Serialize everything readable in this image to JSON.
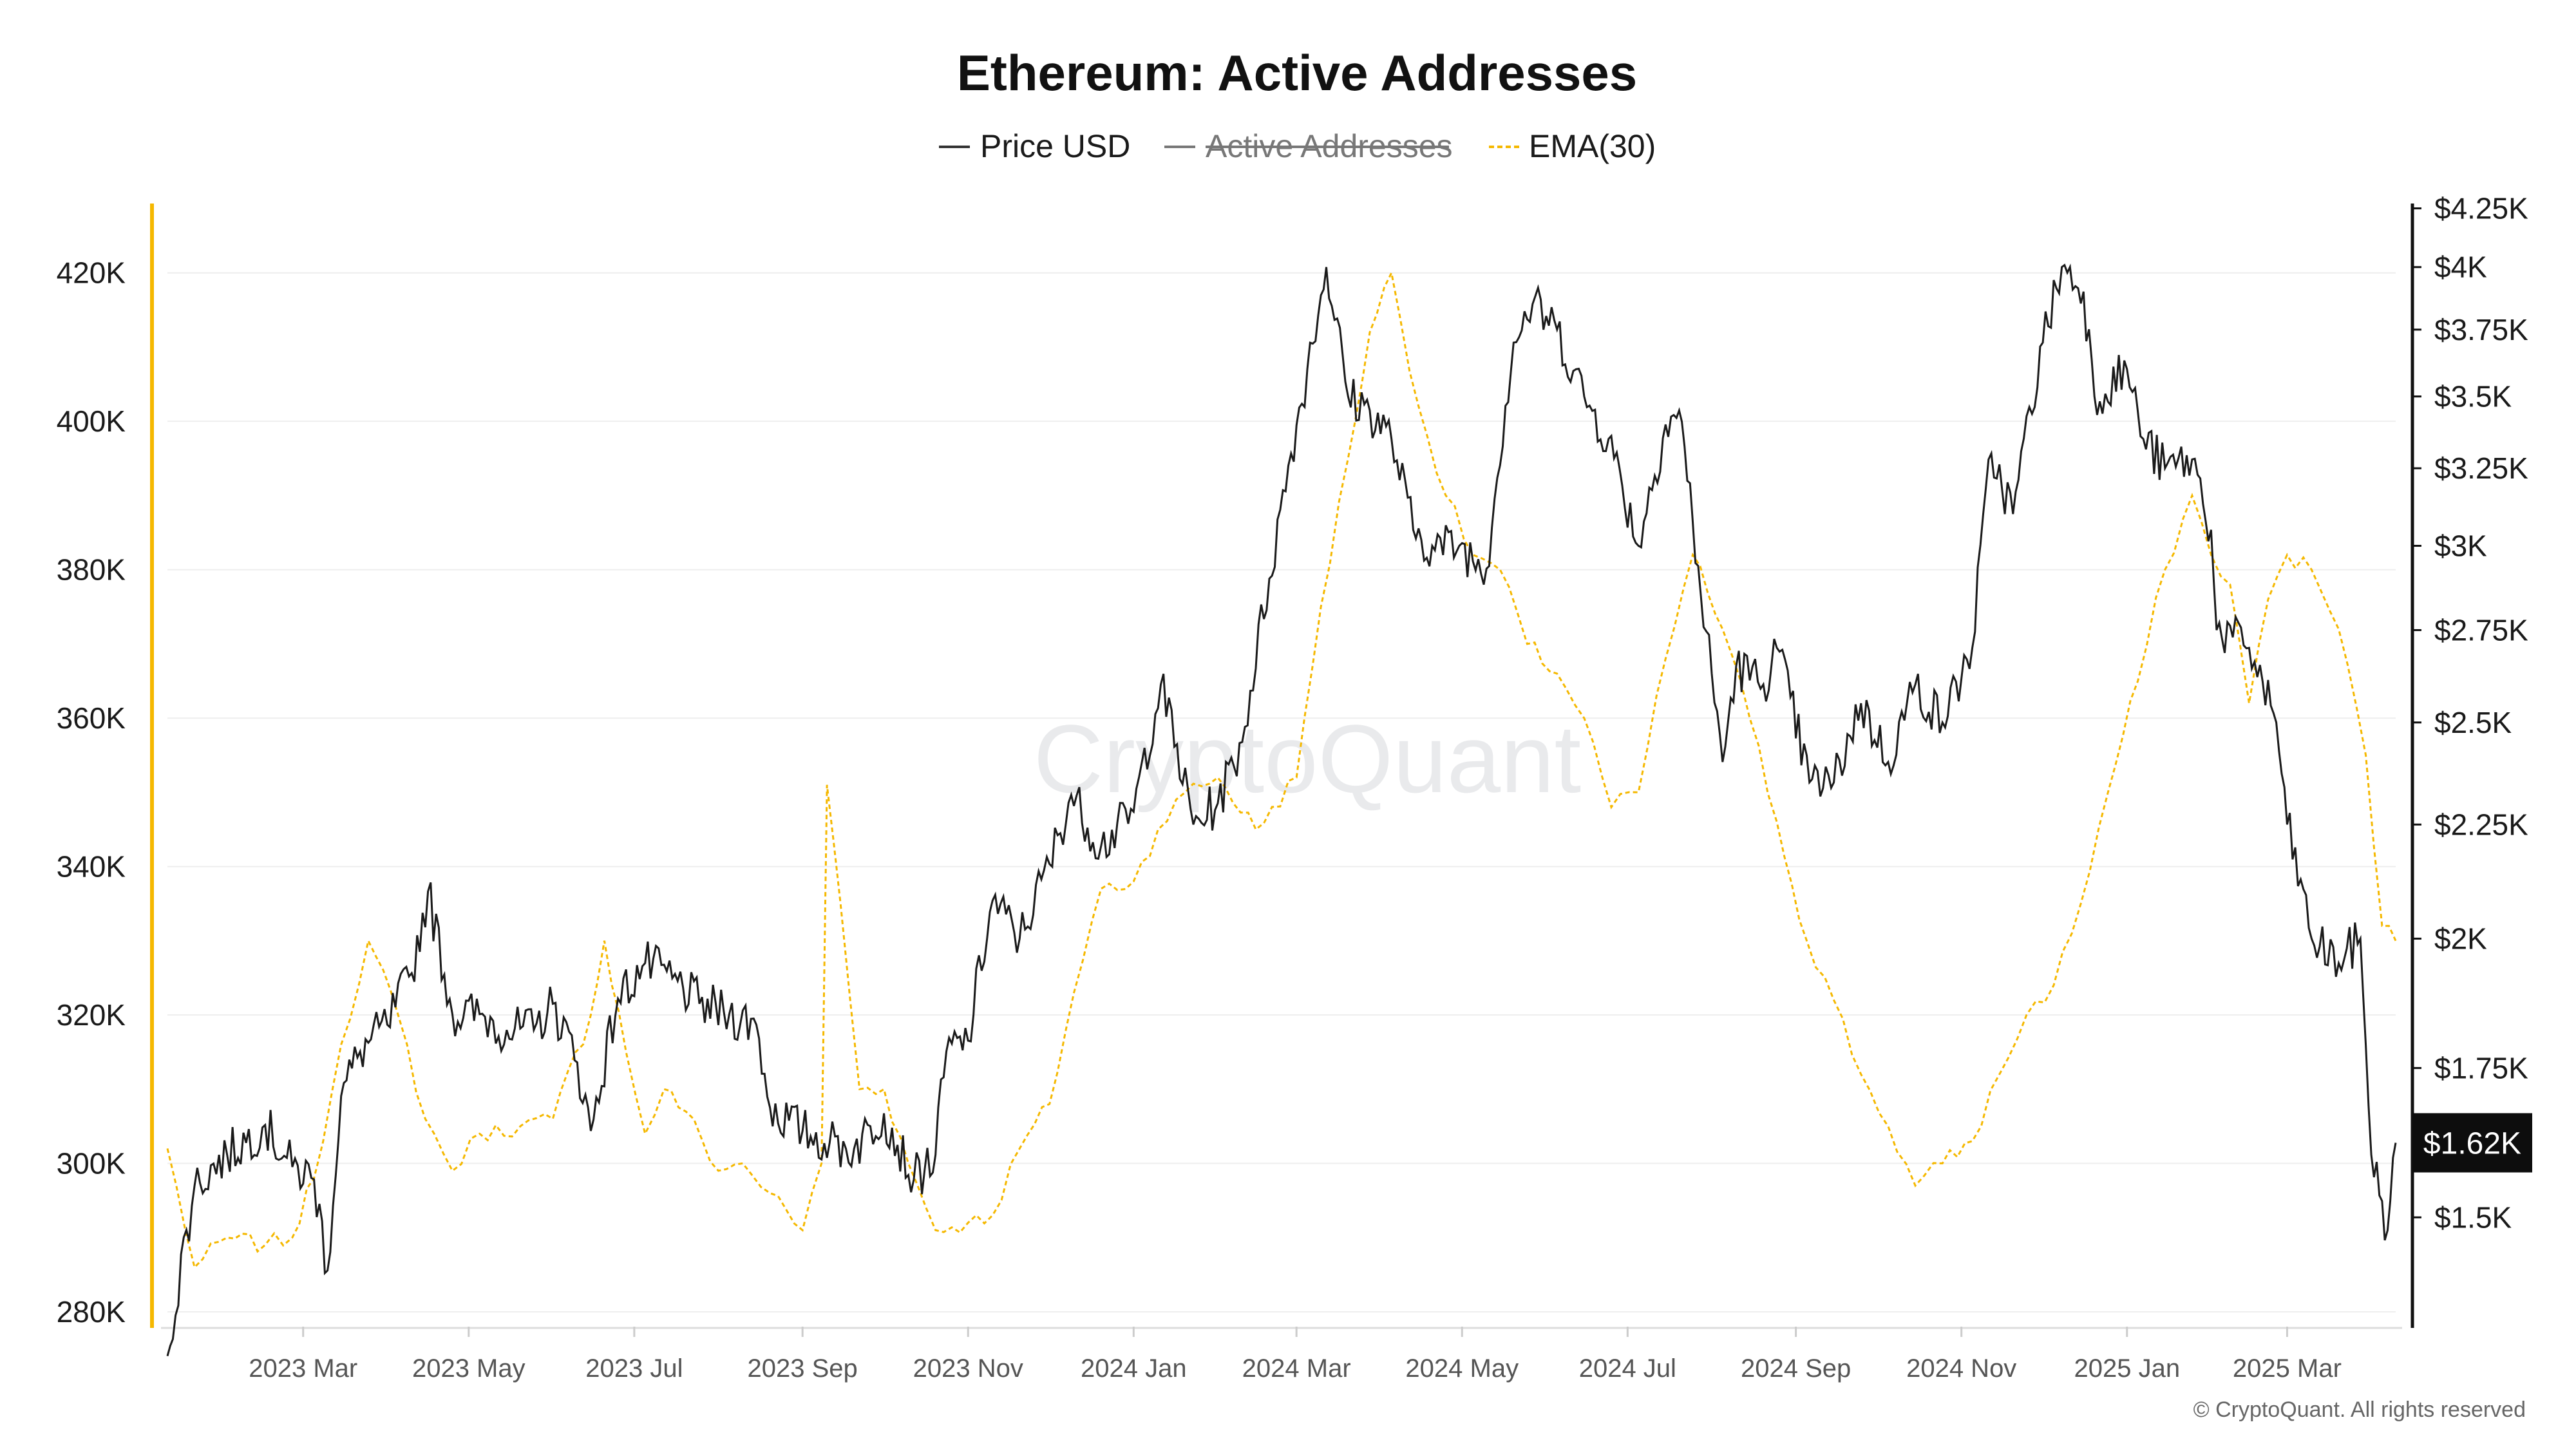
{
  "chart_data": {
    "type": "line",
    "title": "Ethereum: Active Addresses",
    "legend": [
      {
        "label": "Price USD",
        "style": "solid",
        "color": "#333333",
        "enabled": true
      },
      {
        "label": "Active Addresses",
        "style": "solid",
        "color": "#777777",
        "enabled": false
      },
      {
        "label": "EMA(30)",
        "style": "dashed",
        "color": "#f5b800",
        "enabled": true
      }
    ],
    "legend_position": "top-center",
    "grid": true,
    "colors": {
      "price": "#1a1a1a",
      "ema": "#f5b800",
      "left_axis": "#f5b800",
      "right_axis": "#111111"
    },
    "x_ticks": [
      "2023 Mar",
      "2023 May",
      "2023 Jul",
      "2023 Sep",
      "2023 Nov",
      "2024 Jan",
      "2024 Mar",
      "2024 May",
      "2024 Jul",
      "2024 Sep",
      "2024 Nov",
      "2025 Jan",
      "2025 Mar"
    ],
    "x_range": [
      "2023-01-10",
      "2025-04-10"
    ],
    "left_axis": {
      "ticks": [
        "280K",
        "300K",
        "320K",
        "340K",
        "360K",
        "380K",
        "400K",
        "420K"
      ],
      "tick_values": [
        280000,
        300000,
        320000,
        340000,
        360000,
        380000,
        400000,
        420000
      ],
      "range": [
        278000,
        429000
      ]
    },
    "right_axis": {
      "scale": "log",
      "ticks": [
        "$1.5K",
        "$1.75K",
        "$2K",
        "$2.25K",
        "$2.5K",
        "$2.75K",
        "$3K",
        "$3.25K",
        "$3.5K",
        "$3.75K",
        "$4K",
        "$4.25K"
      ],
      "tick_values": [
        1500,
        1750,
        2000,
        2250,
        2500,
        2750,
        3000,
        3250,
        3500,
        3750,
        4000,
        4250
      ],
      "range": [
        1340,
        4260
      ]
    },
    "last_price_label": "$1.62K",
    "last_price": 1620,
    "series": [
      {
        "name": "Price USD",
        "axis": "right",
        "x": [
          "2023-01-10",
          "2023-01-20",
          "2023-02-01",
          "2023-02-15",
          "2023-02-25",
          "2023-03-05",
          "2023-03-10",
          "2023-03-15",
          "2023-03-22",
          "2023-04-01",
          "2023-04-10",
          "2023-04-16",
          "2023-04-25",
          "2023-05-05",
          "2023-05-15",
          "2023-05-25",
          "2023-06-01",
          "2023-06-10",
          "2023-06-15",
          "2023-06-25",
          "2023-07-05",
          "2023-07-15",
          "2023-07-25",
          "2023-08-05",
          "2023-08-15",
          "2023-08-20",
          "2023-09-01",
          "2023-09-11",
          "2023-09-20",
          "2023-10-01",
          "2023-10-12",
          "2023-10-20",
          "2023-10-24",
          "2023-11-01",
          "2023-11-10",
          "2023-11-20",
          "2023-12-01",
          "2023-12-09",
          "2023-12-20",
          "2024-01-01",
          "2024-01-11",
          "2024-01-23",
          "2024-02-01",
          "2024-02-10",
          "2024-02-20",
          "2024-02-28",
          "2024-03-05",
          "2024-03-12",
          "2024-03-20",
          "2024-03-28",
          "2024-04-05",
          "2024-04-13",
          "2024-04-20",
          "2024-04-30",
          "2024-05-10",
          "2024-05-20",
          "2024-05-27",
          "2024-06-05",
          "2024-06-15",
          "2024-06-24",
          "2024-07-05",
          "2024-07-15",
          "2024-07-20",
          "2024-07-28",
          "2024-08-05",
          "2024-08-10",
          "2024-08-20",
          "2024-08-25",
          "2024-09-06",
          "2024-09-15",
          "2024-09-25",
          "2024-10-05",
          "2024-10-15",
          "2024-10-25",
          "2024-11-05",
          "2024-11-12",
          "2024-11-20",
          "2024-12-01",
          "2024-12-08",
          "2024-12-16",
          "2024-12-20",
          "2025-01-01",
          "2025-01-07",
          "2025-01-15",
          "2025-01-25",
          "2025-02-01",
          "2025-02-03",
          "2025-02-15",
          "2025-02-25",
          "2025-03-01",
          "2025-03-10",
          "2025-03-20",
          "2025-03-28",
          "2025-04-01",
          "2025-04-07",
          "2025-04-10"
        ],
        "y": [
          1300,
          1550,
          1600,
          1650,
          1580,
          1560,
          1420,
          1700,
          1780,
          1830,
          1930,
          2100,
          1850,
          1850,
          1820,
          1820,
          1870,
          1760,
          1640,
          1880,
          1950,
          1920,
          1870,
          1850,
          1830,
          1680,
          1640,
          1620,
          1610,
          1670,
          1560,
          1600,
          1780,
          1800,
          2080,
          2000,
          2160,
          2320,
          2200,
          2280,
          2600,
          2250,
          2300,
          2450,
          2900,
          3300,
          3600,
          4000,
          3500,
          3450,
          3350,
          3050,
          3000,
          3000,
          2930,
          3700,
          3850,
          3750,
          3500,
          3350,
          3000,
          3400,
          3450,
          2850,
          2400,
          2650,
          2600,
          2700,
          2350,
          2350,
          2550,
          2400,
          2600,
          2500,
          2700,
          3300,
          3100,
          3700,
          4000,
          3900,
          3500,
          3600,
          3350,
          3250,
          3280,
          3050,
          2750,
          2700,
          2500,
          2250,
          2000,
          1950,
          2000,
          1600,
          1480,
          1620
        ]
      },
      {
        "name": "EMA(30)",
        "axis": "left",
        "x": [
          "2023-01-10",
          "2023-01-20",
          "2023-02-01",
          "2023-02-15",
          "2023-02-25",
          "2023-03-05",
          "2023-03-15",
          "2023-03-25",
          "2023-04-05",
          "2023-04-15",
          "2023-04-25",
          "2023-05-05",
          "2023-05-20",
          "2023-06-01",
          "2023-06-15",
          "2023-06-20",
          "2023-06-28",
          "2023-07-05",
          "2023-07-12",
          "2023-07-20",
          "2023-08-01",
          "2023-08-10",
          "2023-08-20",
          "2023-09-01",
          "2023-09-08",
          "2023-09-10",
          "2023-09-15",
          "2023-09-22",
          "2023-10-01",
          "2023-10-10",
          "2023-10-20",
          "2023-11-01",
          "2023-11-10",
          "2023-11-20",
          "2023-12-01",
          "2023-12-10",
          "2023-12-20",
          "2024-01-01",
          "2024-01-10",
          "2024-01-20",
          "2024-02-01",
          "2024-02-15",
          "2024-03-01",
          "2024-03-10",
          "2024-03-20",
          "2024-03-28",
          "2024-04-05",
          "2024-04-15",
          "2024-04-25",
          "2024-05-05",
          "2024-05-15",
          "2024-05-25",
          "2024-06-05",
          "2024-06-15",
          "2024-06-25",
          "2024-07-05",
          "2024-07-15",
          "2024-07-25",
          "2024-08-05",
          "2024-08-15",
          "2024-08-25",
          "2024-09-05",
          "2024-09-15",
          "2024-09-25",
          "2024-10-05",
          "2024-10-15",
          "2024-10-25",
          "2024-11-05",
          "2024-11-15",
          "2024-11-25",
          "2024-12-05",
          "2024-12-15",
          "2024-12-25",
          "2025-01-05",
          "2025-01-15",
          "2025-01-25",
          "2025-02-01",
          "2025-02-08",
          "2025-02-15",
          "2025-02-22",
          "2025-03-01",
          "2025-03-10",
          "2025-03-20",
          "2025-03-30",
          "2025-04-05",
          "2025-04-10"
        ],
        "y": [
          302000,
          286000,
          290000,
          289000,
          290000,
          298000,
          316000,
          330000,
          320000,
          306000,
          299000,
          304000,
          305000,
          306000,
          320000,
          330000,
          315000,
          304000,
          310000,
          307000,
          299000,
          300000,
          296000,
          291000,
          300000,
          351000,
          335000,
          310000,
          310000,
          300000,
          291000,
          292000,
          293000,
          302000,
          308000,
          323000,
          337000,
          338000,
          345000,
          350000,
          352000,
          345000,
          352000,
          375000,
          395000,
          412000,
          420000,
          402000,
          390000,
          382000,
          380000,
          370000,
          366000,
          360000,
          348000,
          350000,
          368000,
          382000,
          372000,
          360000,
          346000,
          330000,
          322000,
          312000,
          305000,
          297000,
          300000,
          303000,
          312000,
          320000,
          324000,
          335000,
          350000,
          365000,
          380000,
          390000,
          382000,
          378000,
          362000,
          376000,
          382000,
          380000,
          372000,
          355000,
          332000,
          330000
        ]
      }
    ]
  },
  "watermark": "CryptoQuant",
  "copyright": "© CryptoQuant. All rights reserved"
}
